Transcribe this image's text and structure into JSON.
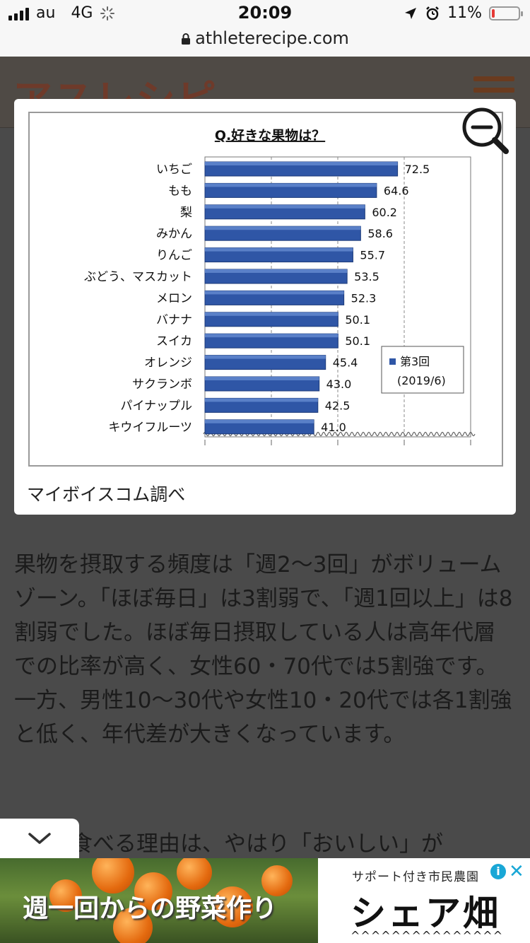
{
  "status": {
    "carrier": "au",
    "network": "4G",
    "time": "20:09",
    "battery": "11%",
    "battery_level": 0.11
  },
  "browser": {
    "url": "athleterecipe.com"
  },
  "site": {
    "logo": "アスレシピ"
  },
  "overlay": {
    "caption": "マイボイスコム調べ",
    "chart_data": {
      "type": "bar",
      "orientation": "horizontal",
      "title": "Q.好きな果物は？",
      "categories": [
        "いちご",
        "もも",
        "梨",
        "みかん",
        "りんご",
        "ぶどう、マスカット",
        "メロン",
        "バナナ",
        "スイカ",
        "オレンジ",
        "サクランボ",
        "パイナップル",
        "キウイフルーツ"
      ],
      "series": [
        {
          "name": "第3回",
          "values": [
            72.5,
            64.6,
            60.2,
            58.6,
            55.7,
            53.5,
            52.3,
            50.1,
            50.1,
            45.4,
            43.0,
            42.5,
            41.0
          ]
        }
      ],
      "value_labels": [
        "72.5",
        "64.6",
        "60.2",
        "58.6",
        "55.7",
        "53.5",
        "52.3",
        "50.1",
        "50.1",
        "45.4",
        "43.0",
        "42.5",
        "41.0"
      ],
      "legend_lines": [
        "第3回",
        "(2019/6)"
      ],
      "legend_position": "right",
      "xlim": [
        0,
        100
      ],
      "grid": true,
      "bar_color": "#2f56a6"
    }
  },
  "article": {
    "paragraph": "果物を摂取する頻度は「週2～3回」がボリュームゾーン。「ほぼ毎日」は3割弱で、「週1回以上」は8割弱でした。ほぼ毎日摂取している人は高年代層での比率が高く、女性60・70代では5割強です。一方、男性10～30代や女性10・20代では各1割強と低く、年代差が大きくなっています。",
    "partial_line": "食べる理由は、やはり「おいしい」が"
  },
  "ad": {
    "left_text": "週一回からの野菜作り",
    "right_small": "サポート付き市民農園",
    "right_big": "シェア畑",
    "right_zigzag": "^^^^^^^^^^^^^^^",
    "info_icon": "i",
    "close_icon": "✕"
  }
}
